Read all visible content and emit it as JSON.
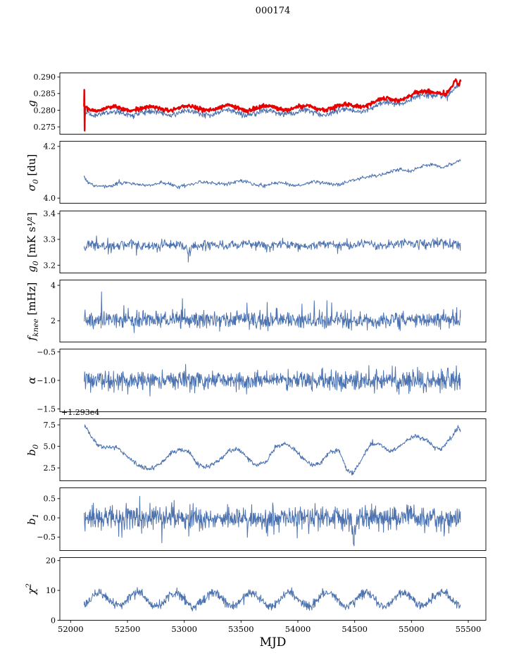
{
  "title": "000174",
  "xlabel": "MJD",
  "xlim": [
    51905,
    55655
  ],
  "xticks": [
    52000,
    52500,
    53000,
    53500,
    54000,
    54500,
    55000,
    55500
  ],
  "xtick_labels": [
    "52000",
    "52500",
    "53000",
    "53500",
    "54000",
    "54500",
    "55000",
    "55500"
  ],
  "colors": {
    "blue": "#4c72b0",
    "red": "#e60000",
    "axis": "#000000"
  },
  "chart_data": [
    {
      "type": "line",
      "ylabel": {
        "main": "g"
      },
      "ylim": [
        0.2728,
        0.2912
      ],
      "yticks": [
        0.275,
        0.28,
        0.285,
        0.29
      ],
      "ytick_labels": [
        "0.275",
        "0.280",
        "0.285",
        "0.290"
      ],
      "series": [
        {
          "name": "g-blue",
          "color": "#4c72b0",
          "lw": 1,
          "n": 900,
          "noise": 0.00045,
          "osc": {
            "amp": 0.0007,
            "period": 340,
            "phase": 52280
          },
          "keypoints": [
            [
              52118,
              0.28
            ],
            [
              52120,
              0.2855
            ],
            [
              52123,
              0.2737
            ],
            [
              52127,
              0.2798
            ],
            [
              52200,
              0.279
            ],
            [
              52350,
              0.2788
            ],
            [
              52500,
              0.2792
            ],
            [
              52700,
              0.279
            ],
            [
              52900,
              0.2793
            ],
            [
              53100,
              0.2791
            ],
            [
              53300,
              0.2794
            ],
            [
              53500,
              0.2793
            ],
            [
              53700,
              0.2792
            ],
            [
              53900,
              0.2794
            ],
            [
              54100,
              0.2792
            ],
            [
              54300,
              0.2794
            ],
            [
              54500,
              0.28
            ],
            [
              54700,
              0.2812
            ],
            [
              54900,
              0.2826
            ],
            [
              55050,
              0.2838
            ],
            [
              55150,
              0.2843
            ],
            [
              55250,
              0.2852
            ],
            [
              55320,
              0.2846
            ],
            [
              55380,
              0.2862
            ],
            [
              55430,
              0.2872
            ]
          ]
        },
        {
          "name": "g-red",
          "color": "#e60000",
          "lw": 2.4,
          "n": 900,
          "noise": 0.0003,
          "osc": {
            "amp": 0.0007,
            "period": 340,
            "phase": 52280
          },
          "keypoints": [
            [
              52118,
              0.2815
            ],
            [
              52120,
              0.2866
            ],
            [
              52123,
              0.2738
            ],
            [
              52127,
              0.2812
            ],
            [
              52200,
              0.2804
            ],
            [
              52350,
              0.2802
            ],
            [
              52500,
              0.2806
            ],
            [
              52700,
              0.2804
            ],
            [
              52900,
              0.2807
            ],
            [
              53100,
              0.2805
            ],
            [
              53300,
              0.2808
            ],
            [
              53500,
              0.2807
            ],
            [
              53700,
              0.2806
            ],
            [
              53900,
              0.2808
            ],
            [
              54100,
              0.2806
            ],
            [
              54300,
              0.2808
            ],
            [
              54500,
              0.2813
            ],
            [
              54700,
              0.2824
            ],
            [
              54900,
              0.2838
            ],
            [
              55050,
              0.2849
            ],
            [
              55150,
              0.2853
            ],
            [
              55250,
              0.286
            ],
            [
              55300,
              0.2852
            ],
            [
              55340,
              0.2864
            ],
            [
              55390,
              0.2886
            ],
            [
              55410,
              0.2868
            ],
            [
              55430,
              0.2878
            ]
          ]
        }
      ]
    },
    {
      "type": "line",
      "ylabel": {
        "main": "σ",
        "sub": "0",
        "rest": " [du]"
      },
      "ylim": [
        3.98,
        4.22
      ],
      "yticks": [
        4.0,
        4.2
      ],
      "ytick_labels": [
        "4.0",
        "4.2"
      ],
      "series": [
        {
          "name": "sigma0",
          "color": "#4c72b0",
          "lw": 1,
          "n": 700,
          "noise": 0.0035,
          "osc": {
            "amp": 0.006,
            "period": 340,
            "phase": 52050
          },
          "keypoints": [
            [
              52120,
              4.072
            ],
            [
              52160,
              4.05
            ],
            [
              52300,
              4.052
            ],
            [
              52600,
              4.056
            ],
            [
              52900,
              4.05
            ],
            [
              53200,
              4.058
            ],
            [
              53500,
              4.06
            ],
            [
              53800,
              4.052
            ],
            [
              54100,
              4.056
            ],
            [
              54350,
              4.058
            ],
            [
              54500,
              4.065
            ],
            [
              54650,
              4.09
            ],
            [
              54800,
              4.095
            ],
            [
              54900,
              4.108
            ],
            [
              55000,
              4.11
            ],
            [
              55080,
              4.125
            ],
            [
              55180,
              4.125
            ],
            [
              55260,
              4.115
            ],
            [
              55330,
              4.135
            ],
            [
              55430,
              4.15
            ]
          ]
        }
      ]
    },
    {
      "type": "line",
      "ylabel": {
        "main": "g",
        "sub": "0",
        "rest": " [mK s¹⁄²]"
      },
      "ylim": [
        3.17,
        3.41
      ],
      "yticks": [
        3.2,
        3.3,
        3.4
      ],
      "ytick_labels": [
        "3.2",
        "3.3",
        "3.4"
      ],
      "series": [
        {
          "name": "g0",
          "color": "#4c72b0",
          "lw": 1,
          "n": 800,
          "noise": 0.009,
          "osc": {
            "amp": 0.004,
            "period": 340,
            "phase": 52100
          },
          "spikes": {
            "prob": 0.012,
            "lo": -0.05,
            "hi": 0.05
          },
          "keypoints": [
            [
              52120,
              3.272
            ],
            [
              52400,
              3.278
            ],
            [
              53000,
              3.276
            ],
            [
              53035,
              3.252
            ],
            [
              53070,
              3.276
            ],
            [
              53600,
              3.28
            ],
            [
              54200,
              3.278
            ],
            [
              54800,
              3.282
            ],
            [
              55100,
              3.284
            ],
            [
              55430,
              3.28
            ]
          ]
        }
      ]
    },
    {
      "type": "line",
      "ylabel": {
        "main": "f",
        "sub": "knee",
        "rest": " [mHz]"
      },
      "ylim": [
        0.8,
        4.3
      ],
      "yticks": [
        2,
        4
      ],
      "ytick_labels": [
        "2",
        "4"
      ],
      "series": [
        {
          "name": "fknee",
          "color": "#4c72b0",
          "lw": 1,
          "n": 950,
          "noise": 0.22,
          "spikes": {
            "prob": 0.035,
            "lo": -0.55,
            "hi": 1.45
          },
          "keypoints": [
            [
              52120,
              2.02
            ],
            [
              52268,
              2.05
            ],
            [
              52272,
              3.75
            ],
            [
              52276,
              2.05
            ],
            [
              55430,
              2.02
            ]
          ]
        }
      ]
    },
    {
      "type": "line",
      "ylabel": {
        "main": "α"
      },
      "ylim": [
        -1.55,
        -0.45
      ],
      "yticks": [
        -1.5,
        -1.0,
        -0.5
      ],
      "ytick_labels": [
        "−1.5",
        "−1.0",
        "−0.5"
      ],
      "series": [
        {
          "name": "alpha",
          "color": "#4c72b0",
          "lw": 1,
          "n": 950,
          "noise": 0.085,
          "spikes": {
            "prob": 0.02,
            "lo": -0.22,
            "hi": 0.22
          },
          "keypoints": [
            [
              52120,
              -1.0
            ],
            [
              55430,
              -1.0
            ]
          ]
        }
      ]
    },
    {
      "type": "line",
      "ylabel": {
        "main": "b",
        "sub": "0"
      },
      "offset_text": "+1.293e4",
      "ylim": [
        1.0,
        8.2
      ],
      "yticks": [
        2.5,
        5.0,
        7.5
      ],
      "ytick_labels": [
        "2.5",
        "5.0",
        "7.5"
      ],
      "series": [
        {
          "name": "b0",
          "color": "#4c72b0",
          "lw": 1,
          "n": 800,
          "noise": 0.13,
          "keypoints": [
            [
              52125,
              7.4
            ],
            [
              52160,
              6.6
            ],
            [
              52230,
              5.2
            ],
            [
              52300,
              4.9
            ],
            [
              52400,
              4.95
            ],
            [
              52500,
              3.8
            ],
            [
              52600,
              2.7
            ],
            [
              52700,
              2.35
            ],
            [
              52800,
              3.1
            ],
            [
              52880,
              4.2
            ],
            [
              52960,
              4.6
            ],
            [
              53040,
              4.3
            ],
            [
              53120,
              2.9
            ],
            [
              53200,
              2.55
            ],
            [
              53300,
              3.3
            ],
            [
              53400,
              4.55
            ],
            [
              53480,
              4.7
            ],
            [
              53560,
              3.6
            ],
            [
              53640,
              2.75
            ],
            [
              53720,
              3.2
            ],
            [
              53800,
              4.9
            ],
            [
              53880,
              5.3
            ],
            [
              53960,
              4.85
            ],
            [
              54040,
              3.7
            ],
            [
              54120,
              2.75
            ],
            [
              54200,
              3.05
            ],
            [
              54280,
              4.3
            ],
            [
              54360,
              4.6
            ],
            [
              54430,
              2.3
            ],
            [
              54480,
              1.85
            ],
            [
              54560,
              3.4
            ],
            [
              54640,
              5.4
            ],
            [
              54720,
              5.25
            ],
            [
              54800,
              4.4
            ],
            [
              54880,
              4.8
            ],
            [
              54960,
              5.7
            ],
            [
              55040,
              6.2
            ],
            [
              55120,
              5.8
            ],
            [
              55200,
              4.9
            ],
            [
              55260,
              4.65
            ],
            [
              55320,
              5.6
            ],
            [
              55380,
              6.5
            ],
            [
              55415,
              7.3
            ],
            [
              55430,
              6.8
            ]
          ]
        }
      ]
    },
    {
      "type": "line",
      "ylabel": {
        "main": "b",
        "sub": "1"
      },
      "ylim": [
        -0.85,
        0.78
      ],
      "yticks": [
        -0.5,
        0.0,
        0.5
      ],
      "ytick_labels": [
        "−0.5",
        "0.0",
        "0.5"
      ],
      "series": [
        {
          "name": "b1",
          "color": "#4c72b0",
          "lw": 1,
          "n": 950,
          "noise": 0.16,
          "keypoints": [
            [
              52120,
              0.0
            ],
            [
              54470,
              0.0
            ],
            [
              54495,
              -0.7
            ],
            [
              54520,
              0.0
            ],
            [
              55430,
              0.0
            ]
          ]
        }
      ]
    },
    {
      "type": "line",
      "ylabel": {
        "main": "χ",
        "sup": "2"
      },
      "ylim": [
        0,
        21
      ],
      "yticks": [
        0,
        10,
        20
      ],
      "ytick_labels": [
        "0",
        "10",
        "20"
      ],
      "series": [
        {
          "name": "chi2",
          "color": "#4c72b0",
          "lw": 1,
          "n": 950,
          "noise": 0.75,
          "osc": {
            "amp": 2.3,
            "period": 335,
            "phase": 52166
          },
          "keypoints": [
            [
              52120,
              6.6
            ],
            [
              52400,
              7.0
            ],
            [
              53000,
              7.0
            ],
            [
              54000,
              7.0
            ],
            [
              55000,
              7.0
            ],
            [
              55430,
              7.2
            ]
          ]
        }
      ]
    }
  ]
}
